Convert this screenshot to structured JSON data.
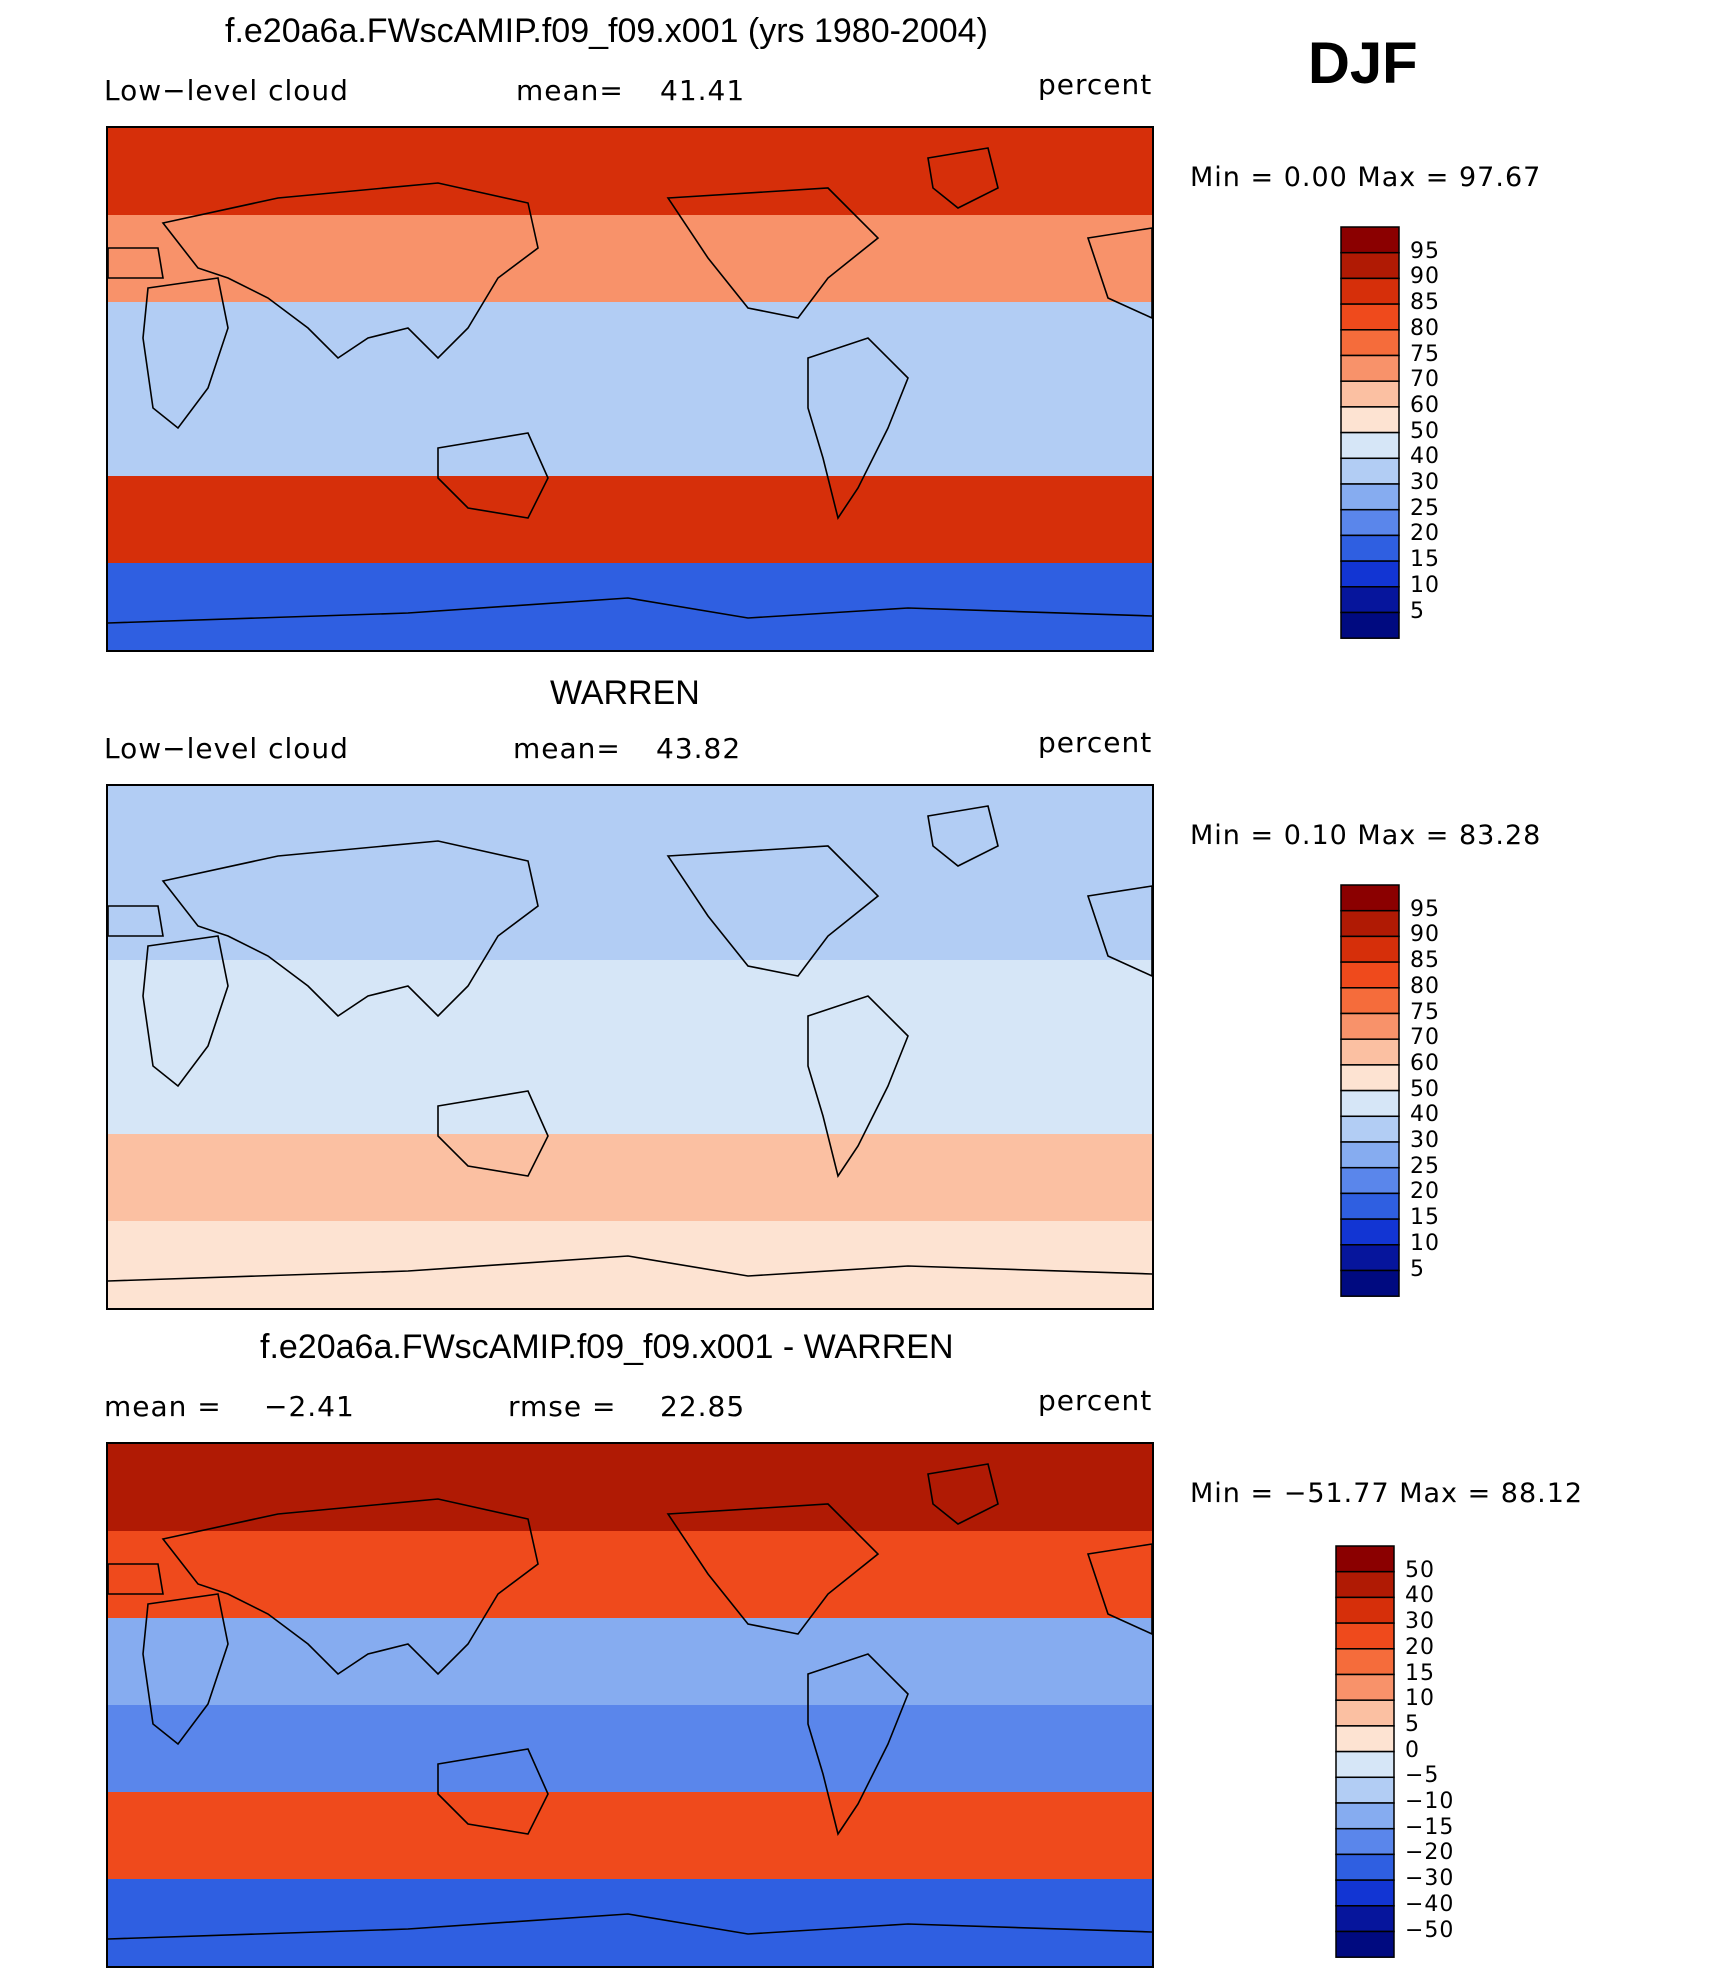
{
  "figure": {
    "season": "DJF",
    "unit": "percent"
  },
  "chart_data": [
    {
      "type": "heatmap",
      "title": "f.e20a6a.FWscAMIP.f09_f09.x001 (yrs 1980-2004)",
      "variable": "Low−level cloud",
      "stat_label": "mean=",
      "stat_value": "41.41",
      "unit": "percent",
      "minmax_text": "Min =    0.00 Max =   97.67",
      "min": 0.0,
      "max": 97.67,
      "levels": [
        "95",
        "90",
        "85",
        "80",
        "75",
        "70",
        "60",
        "50",
        "40",
        "30",
        "25",
        "20",
        "15",
        "10",
        "5"
      ],
      "colors": [
        "#8b0000",
        "#b01a04",
        "#d62f0a",
        "#ef4a1c",
        "#f56c3b",
        "#f8926a",
        "#fbc0a2",
        "#fde3d2",
        "#d6e6f7",
        "#b2cdf4",
        "#86acf0",
        "#5a86eb",
        "#2f5fe1",
        "#1235d3",
        "#06159c",
        "#000a80"
      ],
      "bands": [
        {
          "lat_band": "90N-60N",
          "value": 85
        },
        {
          "lat_band": "60N-30N",
          "value": 70
        },
        {
          "lat_band": "30N-0",
          "value": 30
        },
        {
          "lat_band": "0-30S",
          "value": 35
        },
        {
          "lat_band": "30S-60S",
          "value": 88
        },
        {
          "lat_band": "60S-90S",
          "value": 15
        }
      ]
    },
    {
      "type": "heatmap",
      "title": "WARREN",
      "variable": "Low−level cloud",
      "stat_label": "mean=",
      "stat_value": "43.82",
      "unit": "percent",
      "minmax_text": "Min =    0.10 Max =   83.28",
      "min": 0.1,
      "max": 83.28,
      "levels": [
        "95",
        "90",
        "85",
        "80",
        "75",
        "70",
        "60",
        "50",
        "40",
        "30",
        "25",
        "20",
        "15",
        "10",
        "5"
      ],
      "colors": [
        "#8b0000",
        "#b01a04",
        "#d62f0a",
        "#ef4a1c",
        "#f56c3b",
        "#f8926a",
        "#fbc0a2",
        "#fde3d2",
        "#d6e6f7",
        "#b2cdf4",
        "#86acf0",
        "#5a86eb",
        "#2f5fe1",
        "#1235d3",
        "#06159c",
        "#000a80"
      ],
      "bands": [
        {
          "lat_band": "90N-60N",
          "value": 35
        },
        {
          "lat_band": "60N-30N",
          "value": 30
        },
        {
          "lat_band": "30N-0",
          "value": 45
        },
        {
          "lat_band": "0-30S",
          "value": 42
        },
        {
          "lat_band": "30S-60S",
          "value": 65
        },
        {
          "lat_band": "60S-90S",
          "value": 50
        }
      ]
    },
    {
      "type": "heatmap",
      "title": "f.e20a6a.FWscAMIP.f09_f09.x001 - WARREN",
      "variable": "mean =",
      "stat_label": "−2.41",
      "stat_extra_label": "rmse =",
      "stat_value": "22.85",
      "unit": "percent",
      "minmax_text": "Min = −51.77 Max =   88.12",
      "min": -51.77,
      "max": 88.12,
      "levels": [
        "50",
        "40",
        "30",
        "20",
        "15",
        "10",
        "5",
        "0",
        "−5",
        "−10",
        "−15",
        "−20",
        "−30",
        "−40",
        "−50"
      ],
      "colors": [
        "#8b0000",
        "#b01a04",
        "#d62f0a",
        "#ef4a1c",
        "#f56c3b",
        "#f8926a",
        "#fbc0a2",
        "#fde3d2",
        "#d6e6f7",
        "#b2cdf4",
        "#86acf0",
        "#5a86eb",
        "#2f5fe1",
        "#1235d3",
        "#06159c",
        "#000a80"
      ],
      "bands": [
        {
          "lat_band": "90N-60N",
          "value": 45
        },
        {
          "lat_band": "60N-30N",
          "value": 25
        },
        {
          "lat_band": "30N-0",
          "value": -15
        },
        {
          "lat_band": "0-30S",
          "value": -20
        },
        {
          "lat_band": "30S-60S",
          "value": 20
        },
        {
          "lat_band": "60S-90S",
          "value": -30
        }
      ]
    }
  ]
}
